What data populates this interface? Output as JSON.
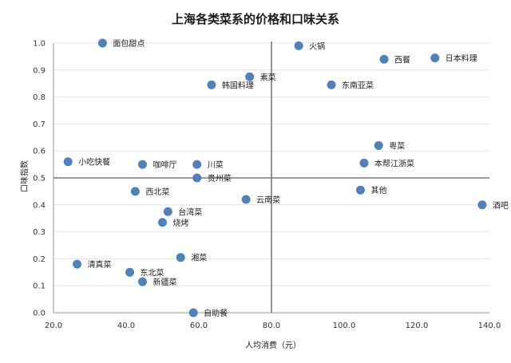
{
  "chart_data": {
    "type": "scatter",
    "title": "上海各类菜系的价格和口味关系",
    "xlabel": "人均消费（元）",
    "ylabel": "口味指数",
    "xlim": [
      20,
      140
    ],
    "ylim": [
      0,
      1
    ],
    "x_ticks": [
      "20.0",
      "40.0",
      "60.0",
      "80.0",
      "100.0",
      "120.0",
      "140.0"
    ],
    "y_ticks": [
      "0.0",
      "0.1",
      "0.2",
      "0.3",
      "0.4",
      "0.5",
      "0.6",
      "0.7",
      "0.8",
      "0.9",
      "1.0"
    ],
    "reference_lines": {
      "x": 80,
      "y": 0.5
    },
    "grid": "horizontal",
    "legend": "none",
    "marker_color": "#4f81bd",
    "points": [
      {
        "name": "面包甜点",
        "x": 33.5,
        "y": 1.0
      },
      {
        "name": "火锅",
        "x": 87.5,
        "y": 0.99
      },
      {
        "name": "西餐",
        "x": 111.0,
        "y": 0.94
      },
      {
        "name": "日本料理",
        "x": 125.0,
        "y": 0.945
      },
      {
        "name": "素菜",
        "x": 74.0,
        "y": 0.875
      },
      {
        "name": "韩国料理",
        "x": 63.5,
        "y": 0.845
      },
      {
        "name": "东南亚菜",
        "x": 96.5,
        "y": 0.845
      },
      {
        "name": "粤菜",
        "x": 109.5,
        "y": 0.62
      },
      {
        "name": "小吃快餐",
        "x": 24.0,
        "y": 0.56
      },
      {
        "name": "咖啡厅",
        "x": 44.5,
        "y": 0.55
      },
      {
        "name": "川菜",
        "x": 59.5,
        "y": 0.55
      },
      {
        "name": "本帮江浙菜",
        "x": 105.5,
        "y": 0.555
      },
      {
        "name": "贵州菜",
        "x": 59.5,
        "y": 0.5
      },
      {
        "name": "西北菜",
        "x": 42.5,
        "y": 0.45
      },
      {
        "name": "其他",
        "x": 104.5,
        "y": 0.455
      },
      {
        "name": "云南菜",
        "x": 73.0,
        "y": 0.42
      },
      {
        "name": "酒吧",
        "x": 138.0,
        "y": 0.4
      },
      {
        "name": "台湾菜",
        "x": 51.5,
        "y": 0.375
      },
      {
        "name": "烧烤",
        "x": 50.0,
        "y": 0.335
      },
      {
        "name": "湘菜",
        "x": 55.0,
        "y": 0.205
      },
      {
        "name": "清真菜",
        "x": 26.5,
        "y": 0.18
      },
      {
        "name": "东北菜",
        "x": 41.0,
        "y": 0.15
      },
      {
        "name": "新疆菜",
        "x": 44.5,
        "y": 0.115
      },
      {
        "name": "自助餐",
        "x": 58.5,
        "y": 0.0
      }
    ]
  }
}
